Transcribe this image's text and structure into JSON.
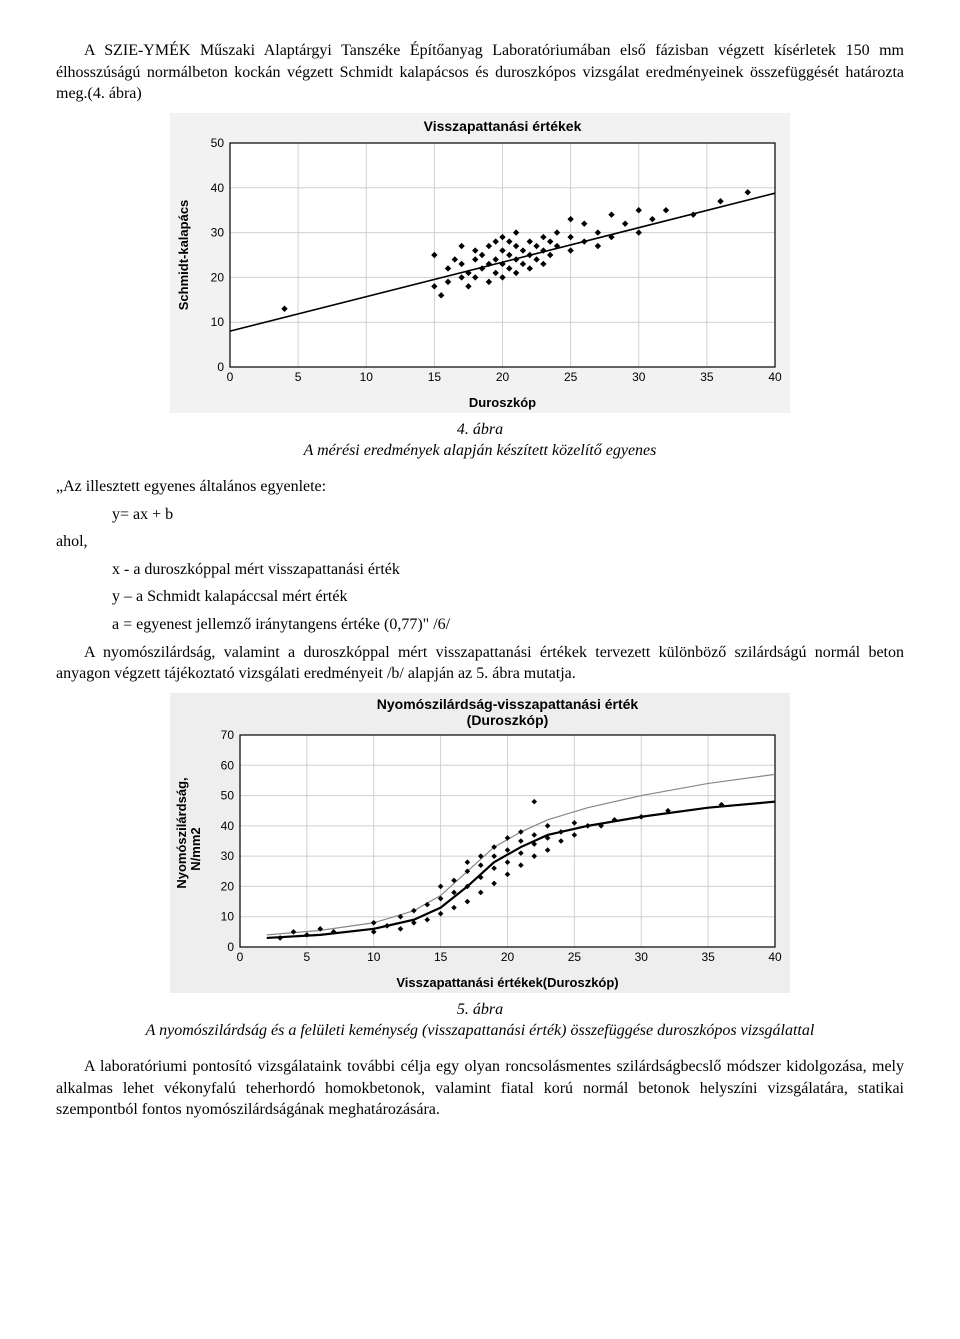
{
  "para1": "A SZIE-YMÉK Műszaki Alaptárgyi Tanszéke Építőanyag Laboratóriumában első fázisban végzett kísérletek 150 mm élhosszúságú normálbeton kockán végzett Schmidt kalapácsos és duroszkópos vizsgálat eredményeinek összefüggését határozta meg.(4. ábra)",
  "fig4": {
    "caption_label": "4. ábra",
    "caption_text": "A mérési eredmények alapján készített közelítő egyenes",
    "title": "Visszapattanási értékek",
    "xlabel": "Duroszkóp",
    "ylabel": "Schmidt-kalapács",
    "xlim": [
      0,
      40
    ],
    "xtick_step": 5,
    "ylim": [
      0,
      50
    ],
    "ytick_step": 10,
    "background_color": "#f2f2f2",
    "plot_bg": "#ffffff",
    "grid_color": "#d0d0d0",
    "axis_color": "#000000",
    "marker_color": "#000000",
    "marker_size": 3.2,
    "line_color": "#000000",
    "line_a": 0.77,
    "line_b": 8,
    "points": [
      [
        4,
        13
      ],
      [
        15,
        18
      ],
      [
        15,
        25
      ],
      [
        15.5,
        16
      ],
      [
        16,
        22
      ],
      [
        16,
        19
      ],
      [
        16.5,
        24
      ],
      [
        17,
        20
      ],
      [
        17,
        23
      ],
      [
        17,
        27
      ],
      [
        17.5,
        18
      ],
      [
        17.5,
        21
      ],
      [
        18,
        24
      ],
      [
        18,
        20
      ],
      [
        18,
        26
      ],
      [
        18.5,
        22
      ],
      [
        18.5,
        25
      ],
      [
        19,
        19
      ],
      [
        19,
        23
      ],
      [
        19,
        27
      ],
      [
        19.5,
        21
      ],
      [
        19.5,
        24
      ],
      [
        19.5,
        28
      ],
      [
        20,
        20
      ],
      [
        20,
        23
      ],
      [
        20,
        26
      ],
      [
        20,
        29
      ],
      [
        20.5,
        22
      ],
      [
        20.5,
        25
      ],
      [
        20.5,
        28
      ],
      [
        21,
        21
      ],
      [
        21,
        24
      ],
      [
        21,
        27
      ],
      [
        21,
        30
      ],
      [
        21.5,
        23
      ],
      [
        21.5,
        26
      ],
      [
        22,
        22
      ],
      [
        22,
        25
      ],
      [
        22,
        28
      ],
      [
        22.5,
        24
      ],
      [
        22.5,
        27
      ],
      [
        23,
        23
      ],
      [
        23,
        26
      ],
      [
        23,
        29
      ],
      [
        23.5,
        25
      ],
      [
        23.5,
        28
      ],
      [
        24,
        27
      ],
      [
        24,
        30
      ],
      [
        25,
        26
      ],
      [
        25,
        29
      ],
      [
        25,
        33
      ],
      [
        26,
        28
      ],
      [
        26,
        32
      ],
      [
        27,
        27
      ],
      [
        27,
        30
      ],
      [
        28,
        29
      ],
      [
        28,
        34
      ],
      [
        29,
        32
      ],
      [
        30,
        30
      ],
      [
        30,
        35
      ],
      [
        31,
        33
      ],
      [
        32,
        35
      ],
      [
        34,
        34
      ],
      [
        36,
        37
      ],
      [
        38,
        39
      ]
    ]
  },
  "eq_intro": "„Az illesztett egyenes általános egyenlete:",
  "eq_line": "y= ax + b",
  "where": "ahol,",
  "where_x": "x - a duroszkóppal mért visszapattanási érték",
  "where_y": "y – a Schmidt kalapáccsal mért érték",
  "where_a": "a = egyenest jellemző iránytangens értéke (0,77)\" /6/",
  "para2": "A nyomószilárdság, valamint a duroszkóppal mért visszapattanási értékek tervezett különböző szilárdságú normál beton anyagon végzett tájékoztató vizsgálati eredményeit /b/ alapján az 5. ábra mutatja.",
  "fig5": {
    "caption_label": "5. ábra",
    "caption_text": "A nyomószilárdság és a felületi keménység (visszapattanási érték) összefüggése duroszkópos vizsgálattal",
    "title_l1": "Nyomószilárdság-visszapattanási érték",
    "title_l2": "(Duroszkóp)",
    "xlabel": "Visszapattanási értékek(Duroszkóp)",
    "ylabel_l1": "Nyomószilárdság,",
    "ylabel_l2": "N/mm2",
    "xlim": [
      0,
      40
    ],
    "xtick_step": 5,
    "ylim": [
      0,
      70
    ],
    "ytick_step": 10,
    "background_color": "#eeeeee",
    "plot_bg": "#ffffff",
    "grid_color": "#d0d0d0",
    "axis_color": "#000000",
    "marker_color": "#000000",
    "marker_size": 2.8,
    "curve_color": "#000000",
    "curve_upper_color": "#888888",
    "curve_poly": [
      [
        2,
        3
      ],
      [
        6,
        4
      ],
      [
        10,
        6
      ],
      [
        13,
        9
      ],
      [
        15,
        13
      ],
      [
        17,
        20
      ],
      [
        19,
        28
      ],
      [
        21,
        33
      ],
      [
        23,
        37
      ],
      [
        26,
        40
      ],
      [
        30,
        43
      ],
      [
        35,
        46
      ],
      [
        40,
        48
      ]
    ],
    "curve_upper_poly": [
      [
        2,
        4
      ],
      [
        6,
        5.5
      ],
      [
        10,
        8
      ],
      [
        13,
        12
      ],
      [
        15,
        17
      ],
      [
        17,
        25
      ],
      [
        19,
        33
      ],
      [
        21,
        38
      ],
      [
        23,
        42
      ],
      [
        26,
        46
      ],
      [
        30,
        50
      ],
      [
        35,
        54
      ],
      [
        40,
        57
      ]
    ],
    "points": [
      [
        3,
        3
      ],
      [
        4,
        5
      ],
      [
        5,
        4
      ],
      [
        6,
        6
      ],
      [
        7,
        5
      ],
      [
        10,
        5
      ],
      [
        10,
        8
      ],
      [
        11,
        7
      ],
      [
        12,
        6
      ],
      [
        12,
        10
      ],
      [
        13,
        8
      ],
      [
        13,
        12
      ],
      [
        14,
        9
      ],
      [
        14,
        14
      ],
      [
        15,
        11
      ],
      [
        15,
        16
      ],
      [
        15,
        20
      ],
      [
        16,
        13
      ],
      [
        16,
        18
      ],
      [
        16,
        22
      ],
      [
        17,
        15
      ],
      [
        17,
        20
      ],
      [
        17,
        25
      ],
      [
        17,
        28
      ],
      [
        18,
        18
      ],
      [
        18,
        23
      ],
      [
        18,
        27
      ],
      [
        18,
        30
      ],
      [
        19,
        21
      ],
      [
        19,
        26
      ],
      [
        19,
        30
      ],
      [
        19,
        33
      ],
      [
        20,
        24
      ],
      [
        20,
        28
      ],
      [
        20,
        32
      ],
      [
        20,
        36
      ],
      [
        21,
        27
      ],
      [
        21,
        31
      ],
      [
        21,
        35
      ],
      [
        21,
        38
      ],
      [
        22,
        30
      ],
      [
        22,
        34
      ],
      [
        22,
        37
      ],
      [
        23,
        32
      ],
      [
        23,
        36
      ],
      [
        23,
        40
      ],
      [
        24,
        35
      ],
      [
        24,
        38
      ],
      [
        25,
        37
      ],
      [
        25,
        41
      ],
      [
        26,
        40
      ],
      [
        27,
        40
      ],
      [
        28,
        42
      ],
      [
        30,
        43
      ],
      [
        32,
        45
      ],
      [
        36,
        47
      ],
      [
        22,
        48
      ]
    ]
  },
  "para3": "A laboratóriumi pontosító vizsgálataink további célja egy olyan roncsolásmentes szilárdságbecslő módszer kidolgozása, mely alkalmas lehet vékonyfalú teherhordó homokbetonok, valamint fiatal korú normál betonok helyszíni vizsgálatára, statikai szempontból fontos nyomószilárdságának meghatározására."
}
